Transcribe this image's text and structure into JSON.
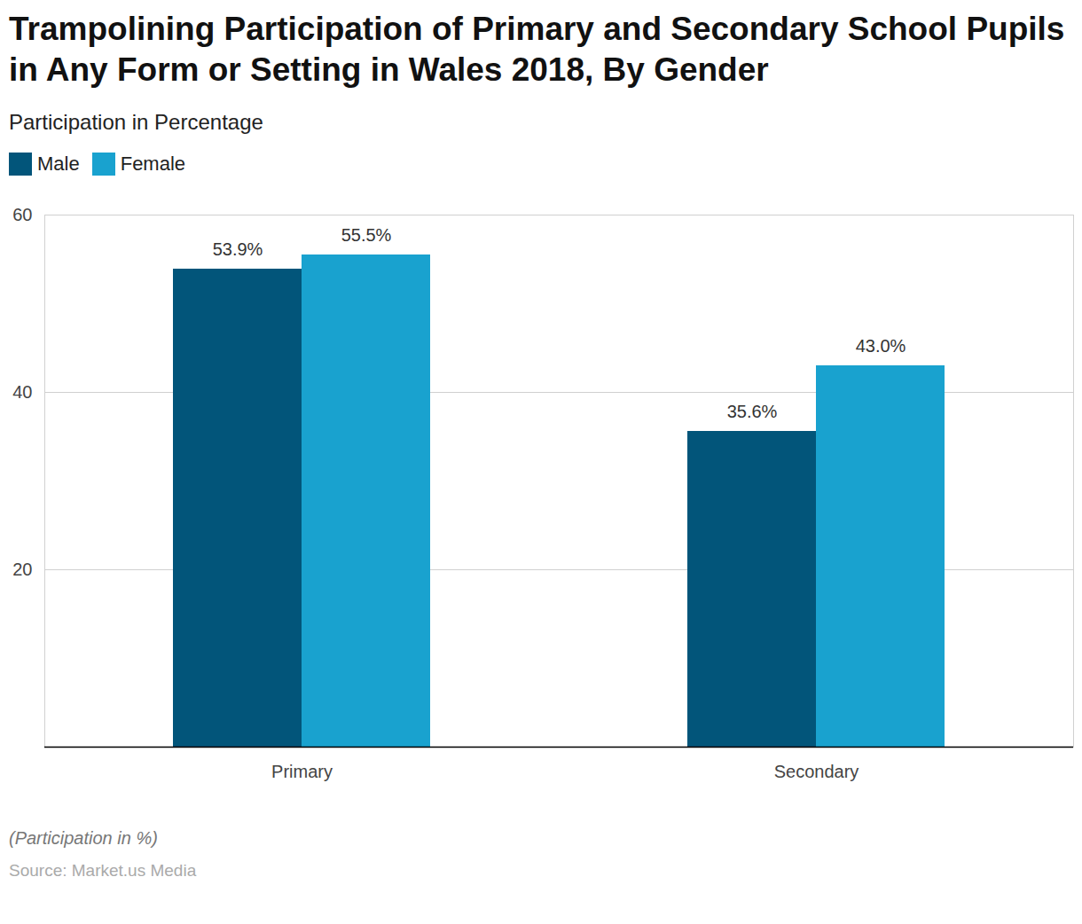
{
  "chart_data": {
    "type": "bar",
    "title": "Trampolining Participation of Primary and Secondary School Pupils in Any Form or Setting in Wales 2018, By Gender",
    "subtitle": "Participation in Percentage",
    "note": "(Participation in %)",
    "source": "Source: Market.us Media",
    "categories": [
      "Primary",
      "Secondary"
    ],
    "series": [
      {
        "name": "Male",
        "color": "#02557a",
        "values": [
          53.9,
          35.6
        ],
        "value_labels": [
          "53.9%",
          "35.6%"
        ]
      },
      {
        "name": "Female",
        "color": "#19a2cf",
        "values": [
          55.5,
          43.0
        ],
        "value_labels": [
          "55.5%",
          "43.0%"
        ]
      }
    ],
    "ylim": [
      0,
      60
    ],
    "yticks": [
      20,
      40,
      60
    ],
    "grid": true,
    "legend": "top-left",
    "data_labels": true
  }
}
